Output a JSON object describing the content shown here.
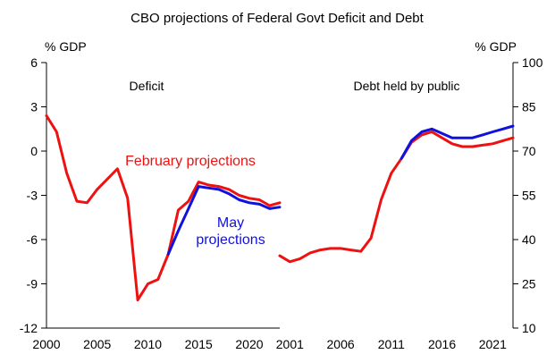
{
  "title": "CBO projections of Federal Govt Deficit and Debt",
  "colors": {
    "february": "#ee1111",
    "may": "#1111dd",
    "axis": "#000000",
    "background": "#ffffff"
  },
  "chart_data": [
    {
      "type": "line",
      "title": "Deficit",
      "ylabel": "% GDP",
      "ylim": [
        -12,
        6
      ],
      "yticks": [
        6,
        3,
        0,
        -3,
        -6,
        -9,
        -12
      ],
      "xlim": [
        2000,
        2023
      ],
      "xticks": [
        2000,
        2005,
        2010,
        2015,
        2020
      ],
      "grid": false,
      "annotations": [
        "February projections",
        "May\nprojections"
      ],
      "series": [
        {
          "name": "February projections",
          "color": "#ee1111",
          "x": [
            2000,
            2001,
            2002,
            2003,
            2004,
            2005,
            2006,
            2007,
            2008,
            2009,
            2010,
            2011,
            2012,
            2013,
            2014,
            2015,
            2016,
            2017,
            2018,
            2019,
            2020,
            2021,
            2022,
            2023
          ],
          "y": [
            2.4,
            1.3,
            -1.5,
            -3.4,
            -3.5,
            -2.6,
            -1.9,
            -1.2,
            -3.2,
            -10.1,
            -9.0,
            -8.7,
            -7.0,
            -4.0,
            -3.4,
            -2.1,
            -2.3,
            -2.4,
            -2.6,
            -3.0,
            -3.2,
            -3.3,
            -3.7,
            -3.5
          ]
        },
        {
          "name": "May projections",
          "color": "#1111dd",
          "x": [
            2012,
            2013,
            2014,
            2015,
            2016,
            2017,
            2018,
            2019,
            2020,
            2021,
            2022,
            2023
          ],
          "y": [
            -7.0,
            -5.4,
            -3.9,
            -2.4,
            -2.5,
            -2.6,
            -2.9,
            -3.3,
            -3.5,
            -3.6,
            -3.9,
            -3.8
          ]
        }
      ]
    },
    {
      "type": "line",
      "title": "Debt held by public",
      "ylabel": "% GDP",
      "ylim": [
        10,
        100
      ],
      "yticks": [
        100,
        85,
        70,
        55,
        40,
        25,
        10
      ],
      "xlim": [
        2000,
        2023
      ],
      "xticks": [
        2001,
        2006,
        2011,
        2016,
        2021
      ],
      "grid": false,
      "series": [
        {
          "name": "February projections",
          "color": "#ee1111",
          "x": [
            2000,
            2001,
            2002,
            2003,
            2004,
            2005,
            2006,
            2007,
            2008,
            2009,
            2010,
            2011,
            2012,
            2013,
            2014,
            2015,
            2016,
            2017,
            2018,
            2019,
            2020,
            2021,
            2022,
            2023
          ],
          "y": [
            34.5,
            32.5,
            33.5,
            35.5,
            36.5,
            37,
            37,
            36.5,
            36,
            40.5,
            53.5,
            62.5,
            67.5,
            73,
            75.5,
            76.5,
            74.5,
            72.5,
            71.5,
            71.5,
            72,
            72.5,
            73.5,
            74.5
          ]
        },
        {
          "name": "May projections",
          "color": "#1111dd",
          "x": [
            2012,
            2013,
            2014,
            2015,
            2016,
            2017,
            2018,
            2019,
            2020,
            2021,
            2022,
            2023
          ],
          "y": [
            67.5,
            73.5,
            76.5,
            77.5,
            76,
            74.5,
            74.5,
            74.5,
            75.5,
            76.5,
            77.5,
            78.5
          ]
        }
      ]
    }
  ]
}
